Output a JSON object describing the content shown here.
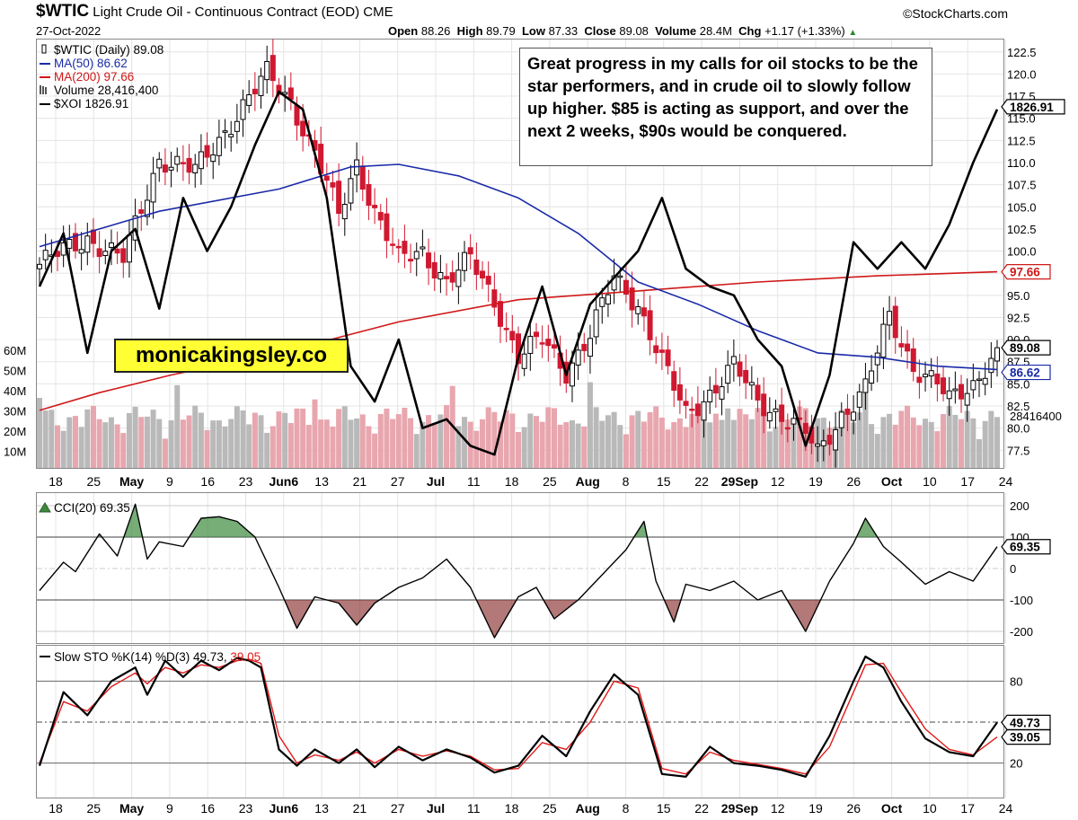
{
  "header": {
    "symbol": "$WTIC",
    "description": "Light Crude Oil - Continuous Contract (EOD)",
    "exchange": "CME",
    "date": "27-Oct-2022",
    "source": "©StockCharts.com",
    "open_label": "Open",
    "open": "88.26",
    "high_label": "High",
    "high": "89.79",
    "low_label": "Low",
    "low": "87.33",
    "close_label": "Close",
    "close": "89.08",
    "volume_label": "Volume",
    "volume": "28.4M",
    "chg_label": "Chg",
    "chg": "+1.17 (+1.33%)",
    "chg_arrow": "▲",
    "up_color": "#2a8a2a"
  },
  "legend": [
    {
      "text": "$WTIC (Daily) 89.08",
      "color": "#000000",
      "icon": "candle-icon"
    },
    {
      "text": "MA(50) 86.62",
      "color": "#1a2aa8",
      "icon": "line-icon"
    },
    {
      "text": "MA(200) 97.66",
      "color": "#d01818",
      "icon": "line-icon"
    },
    {
      "text": "Volume 28,416,400",
      "color": "#000000",
      "icon": "bars-icon"
    },
    {
      "text": "$XOI 1826.91",
      "color": "#000000",
      "icon": "line-icon"
    }
  ],
  "annotation": "Great progress in my calls for oil stocks to be the star performers, and in crude oil to slowly follow up higher. $85 is acting as support, and over the next 2 weeks, $90s would be conquered.",
  "branding": "monicakingsley.co",
  "chart_data": [
    {
      "type": "candlestick",
      "title": "$WTIC Light Crude Oil - Continuous Contract (EOD)",
      "price_axis_ticks": [
        "122.5",
        "120.0",
        "117.5",
        "115.0",
        "112.5",
        "110.0",
        "107.5",
        "105.0",
        "102.5",
        "100.0",
        "97.5",
        "95.0",
        "92.5",
        "90.0",
        "87.5",
        "85.0",
        "82.5",
        "80.0",
        "77.5"
      ],
      "ylim": [
        75.5,
        124
      ],
      "volume_axis_ticks": [
        "60M",
        "50M",
        "40M",
        "30M",
        "20M",
        "10M"
      ],
      "x_tick_labels": [
        "18",
        "25",
        "May",
        "9",
        "16",
        "23",
        "Jun6",
        "13",
        "21",
        "27",
        "Jul",
        "11",
        "18",
        "25",
        "Aug",
        "8",
        "15",
        "22",
        "29Sep",
        "12",
        "19",
        "26",
        "Oct",
        "10",
        "17",
        "24"
      ],
      "x_bold_labels": [
        "May",
        "Jun6",
        "Jul",
        "Aug",
        "29Sep",
        "Oct"
      ],
      "close_anchors": [
        [
          0,
          98.5
        ],
        [
          8,
          101.5
        ],
        [
          14,
          99.0
        ],
        [
          20,
          110.5
        ],
        [
          26,
          109.0
        ],
        [
          32,
          114.5
        ],
        [
          38,
          120.0
        ],
        [
          42,
          117.0
        ],
        [
          46,
          111.0
        ],
        [
          50,
          104.0
        ],
        [
          53,
          110.0
        ],
        [
          56,
          104.5
        ],
        [
          60,
          99.0
        ],
        [
          64,
          100.0
        ],
        [
          68,
          96.5
        ],
        [
          72,
          99.0
        ],
        [
          76,
          94.5
        ],
        [
          80,
          88.0
        ],
        [
          84,
          90.0
        ],
        [
          88,
          86.5
        ],
        [
          92,
          90.5
        ],
        [
          96,
          97.0
        ],
        [
          100,
          94.0
        ],
        [
          104,
          87.5
        ],
        [
          108,
          81.5
        ],
        [
          112,
          84.0
        ],
        [
          116,
          87.0
        ],
        [
          120,
          83.0
        ],
        [
          124,
          81.5
        ],
        [
          128,
          79.5
        ],
        [
          130,
          77.0
        ],
        [
          134,
          81.5
        ],
        [
          138,
          84.5
        ],
        [
          142,
          92.5
        ],
        [
          146,
          87.0
        ],
        [
          150,
          85.0
        ],
        [
          152,
          83.0
        ],
        [
          156,
          85.0
        ],
        [
          160,
          89.08
        ]
      ],
      "ma50": [
        [
          0,
          100.5
        ],
        [
          20,
          104.5
        ],
        [
          40,
          107.0
        ],
        [
          52,
          109.5
        ],
        [
          60,
          109.8
        ],
        [
          70,
          108.5
        ],
        [
          80,
          106.0
        ],
        [
          90,
          102.0
        ],
        [
          100,
          96.5
        ],
        [
          110,
          94.0
        ],
        [
          120,
          91.0
        ],
        [
          130,
          88.5
        ],
        [
          140,
          88.0
        ],
        [
          150,
          87.0
        ],
        [
          160,
          86.62
        ]
      ],
      "ma200": [
        [
          0,
          82.0
        ],
        [
          10,
          84.0
        ],
        [
          22,
          86.0
        ],
        [
          40,
          88.5
        ],
        [
          60,
          92.0
        ],
        [
          80,
          94.5
        ],
        [
          100,
          95.5
        ],
        [
          120,
          96.5
        ],
        [
          140,
          97.2
        ],
        [
          160,
          97.66
        ]
      ],
      "xoi": [
        [
          0,
          96
        ],
        [
          4,
          102
        ],
        [
          8,
          88.5
        ],
        [
          12,
          100
        ],
        [
          16,
          102.5
        ],
        [
          20,
          93.5
        ],
        [
          24,
          106
        ],
        [
          28,
          100
        ],
        [
          32,
          105
        ],
        [
          36,
          112
        ],
        [
          40,
          118
        ],
        [
          44,
          116
        ],
        [
          48,
          106
        ],
        [
          52,
          87
        ],
        [
          56,
          83
        ],
        [
          60,
          90
        ],
        [
          64,
          80
        ],
        [
          68,
          81
        ],
        [
          72,
          78
        ],
        [
          76,
          77
        ],
        [
          80,
          88
        ],
        [
          84,
          96
        ],
        [
          88,
          86
        ],
        [
          92,
          94
        ],
        [
          96,
          97
        ],
        [
          100,
          100
        ],
        [
          104,
          106
        ],
        [
          108,
          98
        ],
        [
          112,
          96
        ],
        [
          116,
          95
        ],
        [
          120,
          90
        ],
        [
          124,
          87
        ],
        [
          128,
          78
        ],
        [
          132,
          86
        ],
        [
          136,
          101
        ],
        [
          140,
          98
        ],
        [
          144,
          101
        ],
        [
          148,
          98
        ],
        [
          152,
          103
        ],
        [
          156,
          110
        ],
        [
          160,
          116
        ]
      ],
      "last_labels": {
        "close": "89.08",
        "ma50": "86.62",
        "ma200": "97.66",
        "xoi": "1826.91",
        "volume": "28416400"
      },
      "colors": {
        "up": "#000000",
        "down": "#d01830",
        "ma50": "#1a2aa8",
        "ma200": "#d01818",
        "xoi": "#000000",
        "vol_up": "#b9b9b9",
        "vol_down": "#e8a6ae"
      }
    },
    {
      "type": "line",
      "title": "CCI(20) 69.35",
      "value": "69.35",
      "axis_ticks": [
        "200",
        "100",
        "0",
        "-100",
        "-200"
      ],
      "ylim": [
        -240,
        240
      ],
      "series": [
        [
          0,
          -70
        ],
        [
          4,
          20
        ],
        [
          6,
          -10
        ],
        [
          10,
          110
        ],
        [
          13,
          40
        ],
        [
          16,
          205
        ],
        [
          18,
          30
        ],
        [
          20,
          85
        ],
        [
          24,
          70
        ],
        [
          27,
          160
        ],
        [
          30,
          165
        ],
        [
          33,
          150
        ],
        [
          36,
          100
        ],
        [
          40,
          -60
        ],
        [
          43,
          -190
        ],
        [
          46,
          -90
        ],
        [
          50,
          -110
        ],
        [
          53,
          -180
        ],
        [
          56,
          -110
        ],
        [
          60,
          -60
        ],
        [
          64,
          -30
        ],
        [
          68,
          30
        ],
        [
          72,
          -60
        ],
        [
          76,
          -220
        ],
        [
          80,
          -90
        ],
        [
          83,
          -60
        ],
        [
          86,
          -160
        ],
        [
          90,
          -100
        ],
        [
          94,
          -20
        ],
        [
          98,
          60
        ],
        [
          101,
          150
        ],
        [
          103,
          -40
        ],
        [
          106,
          -170
        ],
        [
          108,
          -50
        ],
        [
          112,
          -70
        ],
        [
          116,
          -40
        ],
        [
          120,
          -100
        ],
        [
          124,
          -70
        ],
        [
          128,
          -200
        ],
        [
          132,
          -40
        ],
        [
          136,
          80
        ],
        [
          138,
          160
        ],
        [
          141,
          70
        ],
        [
          144,
          20
        ],
        [
          148,
          -50
        ],
        [
          152,
          -10
        ],
        [
          156,
          -40
        ],
        [
          160,
          69.35
        ]
      ]
    },
    {
      "type": "line",
      "title": "Slow STO %K(14) %D(3) 49.73, 39.05",
      "k_value": "49.73",
      "d_value": "39.05",
      "axis_ticks": [
        "80",
        "20"
      ],
      "ylim": [
        0,
        100
      ],
      "k": [
        [
          0,
          18
        ],
        [
          4,
          72
        ],
        [
          8,
          55
        ],
        [
          12,
          80
        ],
        [
          16,
          90
        ],
        [
          18,
          70
        ],
        [
          21,
          95
        ],
        [
          24,
          83
        ],
        [
          27,
          95
        ],
        [
          30,
          88
        ],
        [
          33,
          97
        ],
        [
          35,
          95
        ],
        [
          37,
          90
        ],
        [
          40,
          30
        ],
        [
          43,
          18
        ],
        [
          46,
          30
        ],
        [
          50,
          20
        ],
        [
          53,
          30
        ],
        [
          56,
          17
        ],
        [
          60,
          32
        ],
        [
          64,
          22
        ],
        [
          68,
          30
        ],
        [
          72,
          24
        ],
        [
          76,
          13
        ],
        [
          80,
          18
        ],
        [
          84,
          40
        ],
        [
          88,
          25
        ],
        [
          92,
          58
        ],
        [
          96,
          85
        ],
        [
          100,
          70
        ],
        [
          104,
          12
        ],
        [
          108,
          10
        ],
        [
          112,
          32
        ],
        [
          116,
          20
        ],
        [
          120,
          18
        ],
        [
          124,
          15
        ],
        [
          128,
          10
        ],
        [
          132,
          40
        ],
        [
          136,
          80
        ],
        [
          138,
          98
        ],
        [
          141,
          90
        ],
        [
          144,
          65
        ],
        [
          148,
          38
        ],
        [
          152,
          28
        ],
        [
          156,
          25
        ],
        [
          160,
          49.73
        ]
      ],
      "d": [
        [
          0,
          20
        ],
        [
          4,
          65
        ],
        [
          8,
          58
        ],
        [
          12,
          76
        ],
        [
          16,
          86
        ],
        [
          18,
          78
        ],
        [
          21,
          90
        ],
        [
          24,
          86
        ],
        [
          27,
          92
        ],
        [
          30,
          90
        ],
        [
          33,
          95
        ],
        [
          35,
          96
        ],
        [
          37,
          93
        ],
        [
          40,
          40
        ],
        [
          43,
          20
        ],
        [
          46,
          26
        ],
        [
          50,
          22
        ],
        [
          53,
          28
        ],
        [
          56,
          20
        ],
        [
          60,
          30
        ],
        [
          64,
          25
        ],
        [
          68,
          29
        ],
        [
          72,
          25
        ],
        [
          76,
          15
        ],
        [
          80,
          16
        ],
        [
          84,
          35
        ],
        [
          88,
          30
        ],
        [
          92,
          50
        ],
        [
          96,
          80
        ],
        [
          100,
          75
        ],
        [
          104,
          16
        ],
        [
          108,
          12
        ],
        [
          112,
          28
        ],
        [
          116,
          22
        ],
        [
          120,
          19
        ],
        [
          124,
          16
        ],
        [
          128,
          12
        ],
        [
          132,
          32
        ],
        [
          136,
          72
        ],
        [
          138,
          92
        ],
        [
          141,
          93
        ],
        [
          144,
          72
        ],
        [
          148,
          45
        ],
        [
          152,
          30
        ],
        [
          156,
          26
        ],
        [
          160,
          39.05
        ]
      ]
    }
  ]
}
